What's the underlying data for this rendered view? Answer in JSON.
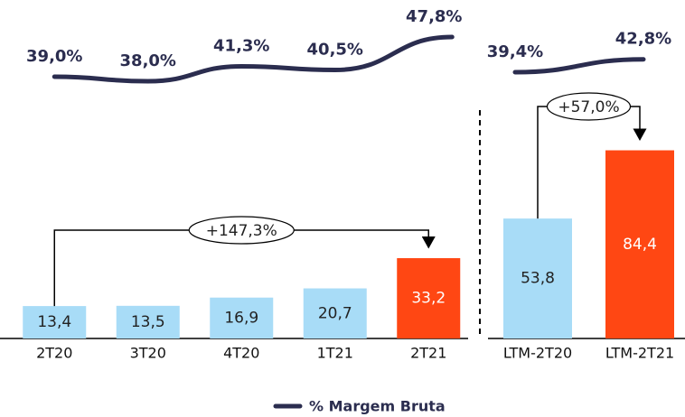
{
  "chart_data": [
    {
      "type": "bar",
      "categories": [
        "2T20",
        "3T20",
        "4T20",
        "1T21",
        "2T21"
      ],
      "series": [
        {
          "type": "bar",
          "colors": [
            "#a8dcf7",
            "#a8dcf7",
            "#a8dcf7",
            "#a8dcf7",
            "#ff4713"
          ],
          "label_colors": [
            "#222222",
            "#222222",
            "#222222",
            "#222222",
            "#ffffff"
          ],
          "values": [
            13.4,
            13.5,
            16.9,
            20.7,
            33.2
          ],
          "value_labels": [
            "13,4",
            "13,5",
            "16,9",
            "20,7",
            "33,2"
          ]
        },
        {
          "type": "line",
          "name": "% Margem Bruta",
          "color": "#2b2d4f",
          "values": [
            39.0,
            38.0,
            41.3,
            40.5,
            47.8
          ],
          "value_labels": [
            "39,0%",
            "38,0%",
            "41,3%",
            "40,5%",
            "47,8%"
          ]
        }
      ],
      "annotation": "+147,3%"
    },
    {
      "type": "bar",
      "categories": [
        "LTM-2T20",
        "LTM-2T21"
      ],
      "series": [
        {
          "type": "bar",
          "colors": [
            "#a8dcf7",
            "#ff4713"
          ],
          "label_colors": [
            "#222222",
            "#ffffff"
          ],
          "values": [
            53.8,
            84.4
          ],
          "value_labels": [
            "53,8",
            "84,4"
          ]
        },
        {
          "type": "line",
          "color": "#2b2d4f",
          "values": [
            39.4,
            42.8
          ],
          "value_labels": [
            "39,4%",
            "42,8%"
          ]
        }
      ],
      "annotation": "+57,0%"
    }
  ]
}
